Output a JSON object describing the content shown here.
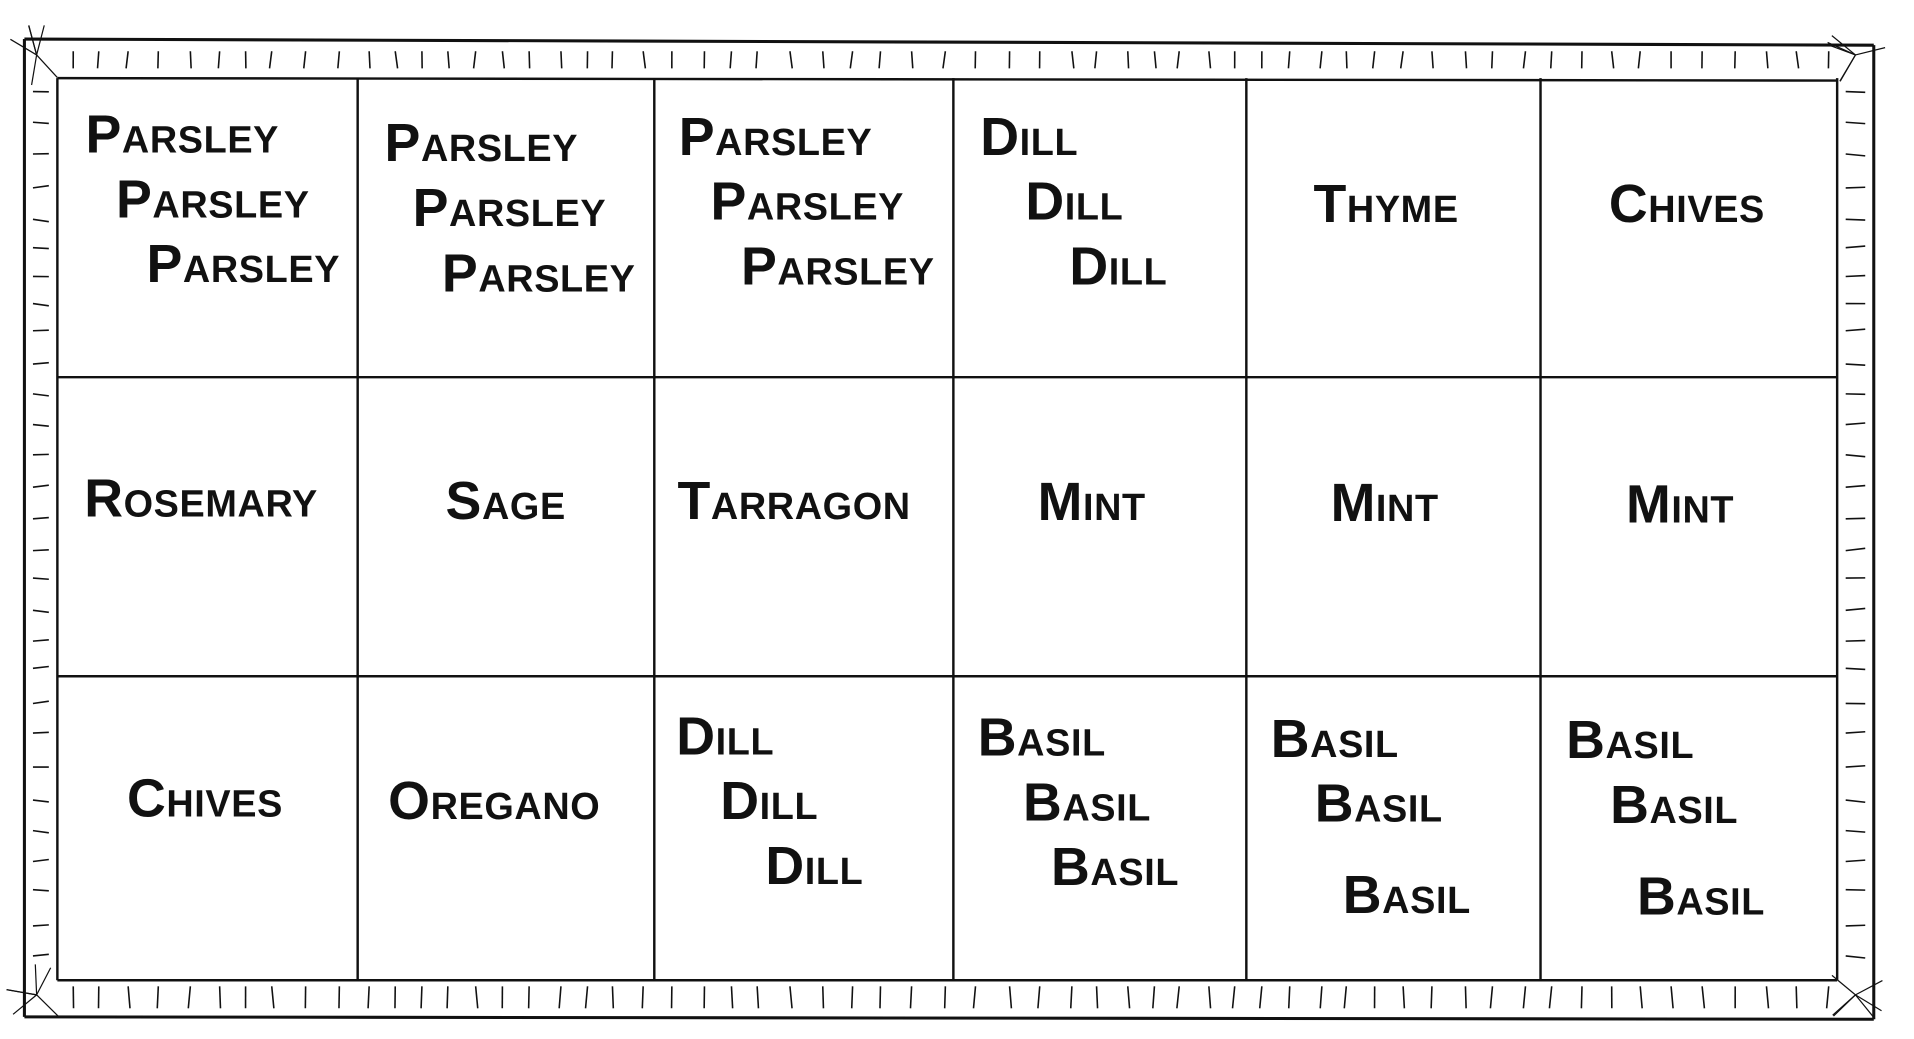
{
  "grid": {
    "rows": [
      [
        [
          "Parsley",
          "Parsley",
          "Parsley"
        ],
        [
          "Parsley",
          "Parsley",
          "Parsley"
        ],
        [
          "Parsley",
          "Parsley",
          "Parsley"
        ],
        [
          "Dill",
          "Dill",
          "Dill"
        ],
        [
          "Thyme"
        ],
        [
          "Chives"
        ]
      ],
      [
        [
          "Rosemary"
        ],
        [
          "Sage"
        ],
        [
          "Tarragon"
        ],
        [
          "Mint"
        ],
        [
          "Mint"
        ],
        [
          "Mint"
        ]
      ],
      [
        [
          "Chives"
        ],
        [
          "Oregano"
        ],
        [
          "Dill",
          "Dill",
          "Dill"
        ],
        [
          "Basil",
          "Basil",
          "Basil"
        ],
        [
          "Basil",
          "Basil",
          "Basil"
        ],
        [
          "Basil",
          "Basil",
          "Basil"
        ]
      ]
    ]
  }
}
